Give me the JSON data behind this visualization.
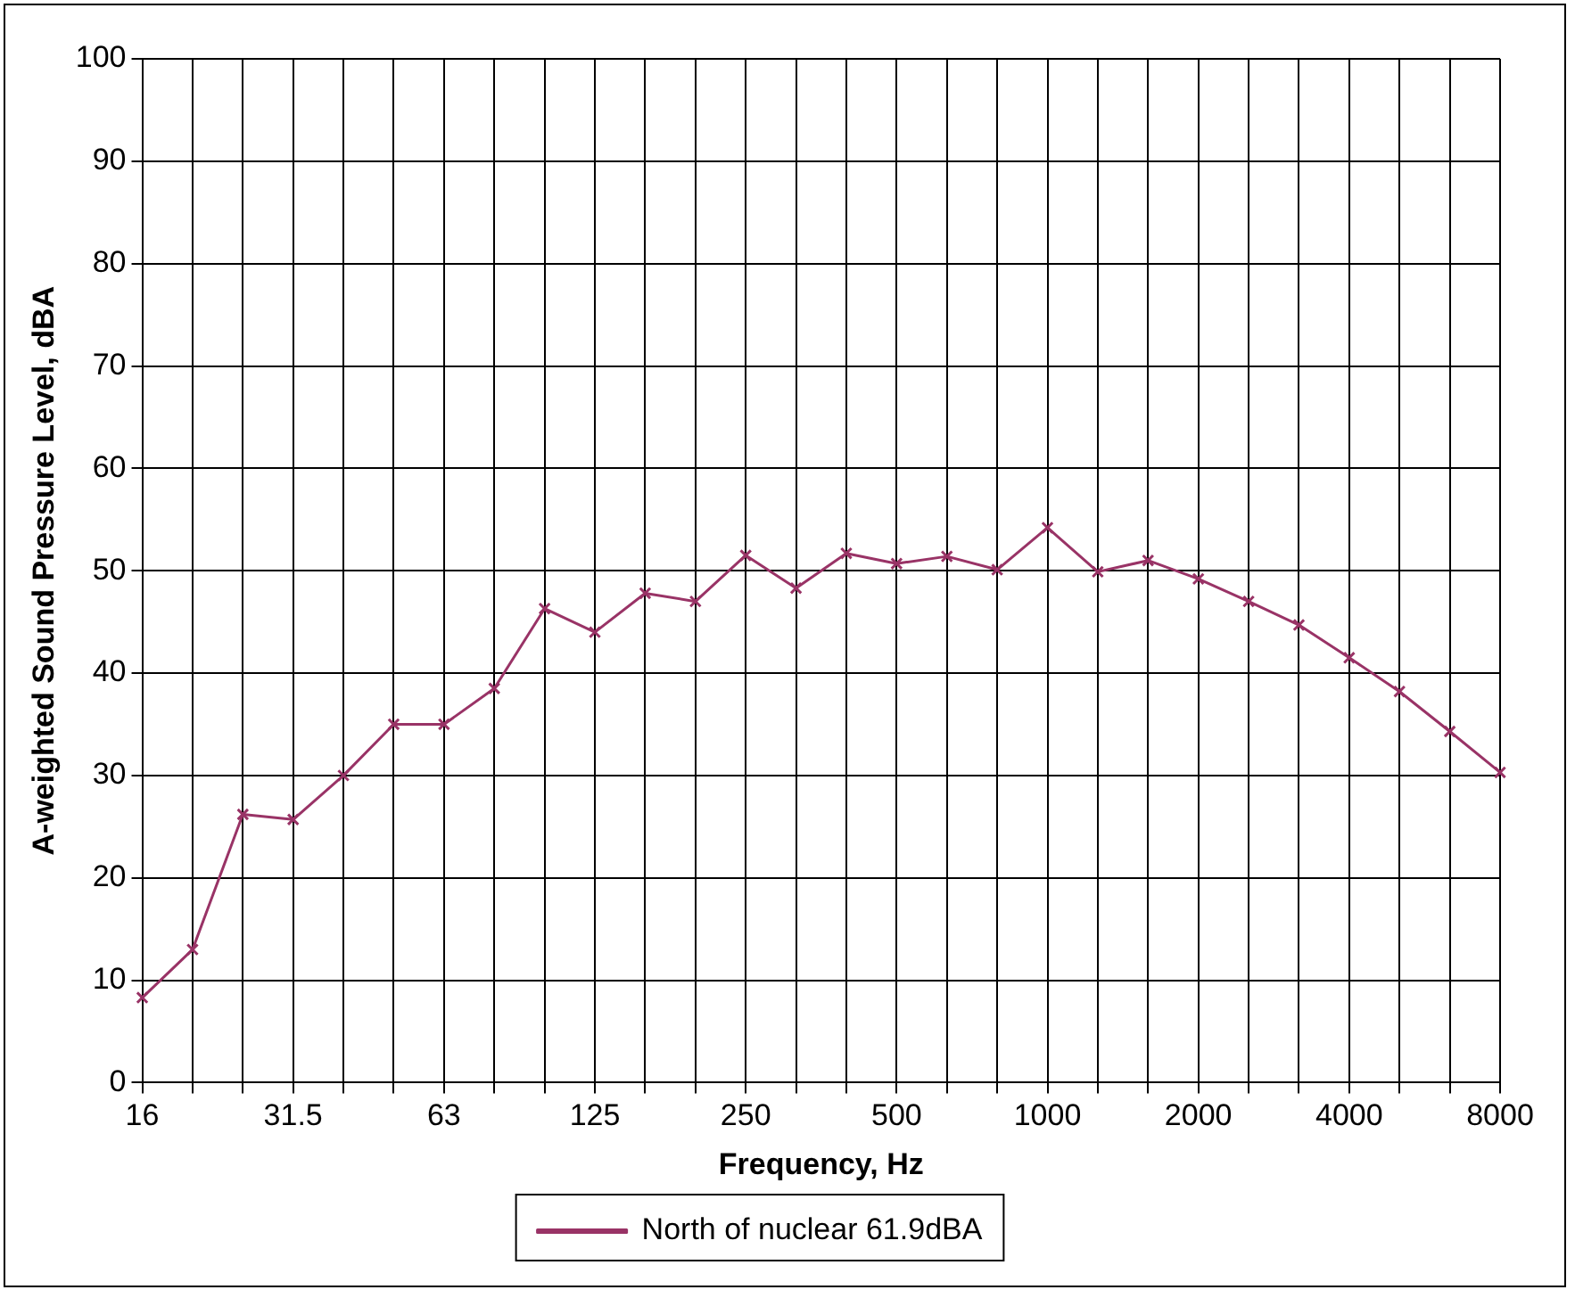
{
  "chart_data": {
    "type": "line",
    "xlabel": "Frequency, Hz",
    "ylabel": "A-weighted Sound Pressure Level, dBA",
    "categories": [
      "16",
      null,
      null,
      "31.5",
      null,
      null,
      "63",
      null,
      null,
      "125",
      null,
      null,
      "250",
      null,
      null,
      "500",
      null,
      null,
      "1000",
      null,
      null,
      "2000",
      null,
      null,
      "4000",
      null,
      null,
      "8000"
    ],
    "series": [
      {
        "name": "North of nuclear 61.9dBA",
        "color": "#993366",
        "values": [
          8.3,
          13,
          26.2,
          25.7,
          30,
          35,
          35,
          38.5,
          46.3,
          44,
          47.8,
          47,
          51.5,
          48.3,
          51.7,
          50.7,
          51.4,
          50.1,
          54.2,
          49.9,
          51,
          49.2,
          47,
          44.7,
          41.5,
          38.2,
          34.3,
          30.3
        ]
      }
    ],
    "ylim": [
      0,
      100
    ],
    "yticks": [
      0,
      10,
      20,
      30,
      40,
      50,
      60,
      70,
      80,
      90,
      100
    ],
    "grid": true,
    "legend": "bottom",
    "marker": "cross",
    "line_style": "solid"
  }
}
